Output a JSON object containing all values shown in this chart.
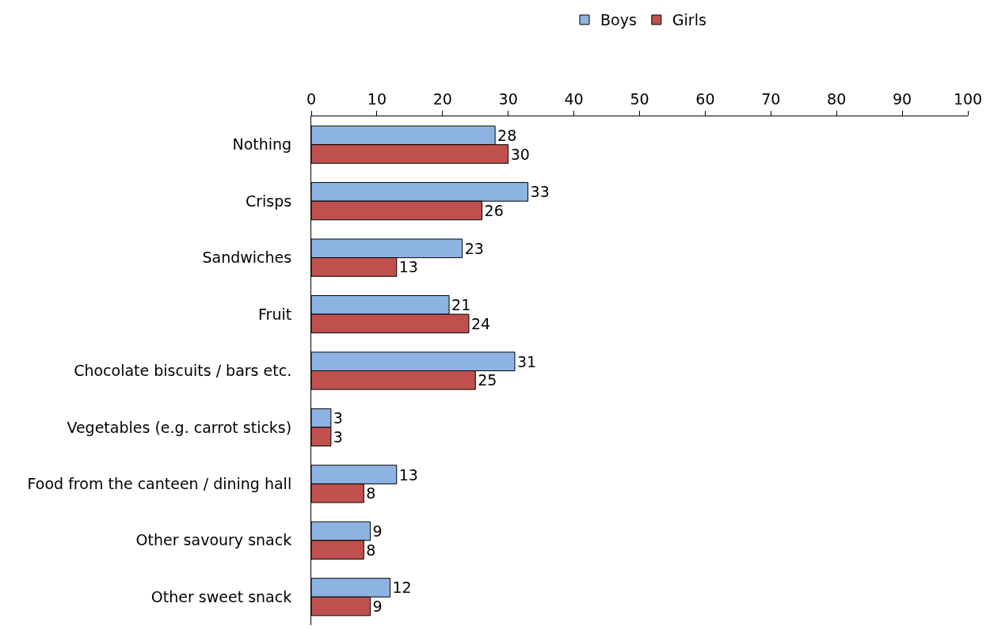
{
  "chart_data": {
    "type": "bar",
    "orientation": "horizontal",
    "categories": [
      "Nothing",
      "Crisps",
      "Sandwiches",
      "Fruit",
      "Chocolate biscuits / bars etc.",
      "Vegetables (e.g. carrot sticks)",
      "Food from the canteen / dining hall",
      "Other savoury snack",
      "Other sweet snack"
    ],
    "series": [
      {
        "name": "Boys",
        "color": "#8db3e2",
        "values": [
          28,
          33,
          23,
          21,
          31,
          3,
          13,
          9,
          12
        ]
      },
      {
        "name": "Girls",
        "color": "#c0504d",
        "values": [
          30,
          26,
          13,
          24,
          25,
          3,
          8,
          8,
          9
        ]
      }
    ],
    "xlim": [
      0,
      100
    ],
    "xticks": [
      0,
      10,
      20,
      30,
      40,
      50,
      60,
      70,
      80,
      90,
      100
    ],
    "legend": "top",
    "data_labels": true,
    "grid": false
  }
}
